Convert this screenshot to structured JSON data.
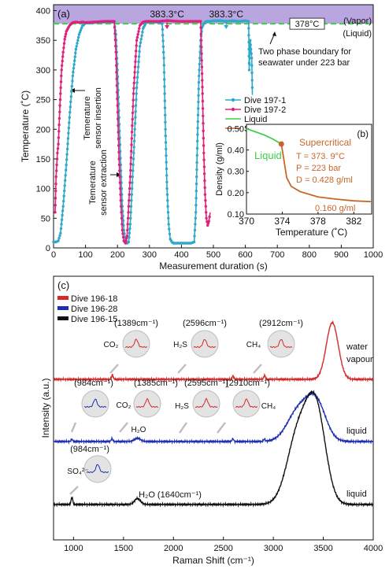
{
  "chart_data": [
    {
      "panel": "(a)",
      "type": "line",
      "xlabel": "Measurement duration (s)",
      "ylabel": "Temperature (˚C)",
      "xlim": [
        0,
        1000
      ],
      "ylim": [
        0,
        410
      ],
      "xticks": [
        0,
        100,
        200,
        300,
        400,
        500,
        600,
        700,
        800,
        900,
        1000
      ],
      "yticks": [
        0,
        50,
        100,
        150,
        200,
        250,
        300,
        350,
        400
      ],
      "vapor_region": {
        "label": "(Vapor)",
        "from": 378,
        "color": "#b9a6e0"
      },
      "liquid_label": "(Liquid)",
      "boundary": {
        "y": 378,
        "label": "378°C",
        "color": "#3ecf4a"
      },
      "boundary_note": [
        "Two phase boundary for",
        "seawater under 223 bar"
      ],
      "annotations": [
        {
          "text": "383.3°C",
          "x": 355,
          "color": "#e0217a"
        },
        {
          "text": "383.3°C",
          "x": 540,
          "color": "#2fa8c9"
        },
        {
          "text": "Temerature sensor insertion",
          "lines": [
            "Temerature",
            "sensor insertion"
          ]
        },
        {
          "text": "Temerature sensor extraction",
          "lines": [
            "Temerature",
            "sensor extraction"
          ]
        }
      ],
      "legend": [
        {
          "name": "Dive 197-1",
          "color": "#2fa8c9",
          "style": "line-marker"
        },
        {
          "name": "Dive 197-2",
          "color": "#e0217a",
          "style": "line-marker"
        },
        {
          "name": "Liquid",
          "color": "#3ecf4a",
          "style": "line"
        },
        {
          "name": "Supercritical",
          "color": "#c8662a",
          "style": "line"
        }
      ],
      "series": [
        {
          "name": "Dive 197-1",
          "color": "#2fa8c9",
          "x": [
            0,
            8,
            15,
            22,
            30,
            40,
            50,
            60,
            70,
            80,
            90,
            100,
            130,
            160,
            180,
            190,
            195,
            200,
            205,
            210,
            215,
            220,
            225,
            230,
            235,
            240,
            250,
            260,
            270,
            280,
            290,
            300,
            330,
            340,
            345,
            350,
            355,
            360,
            365,
            370,
            375,
            380,
            400,
            430,
            440,
            445,
            450,
            455,
            460,
            465,
            470,
            475,
            480,
            490,
            500,
            520,
            540,
            560,
            580,
            600,
            610,
            612,
            615,
            620,
            622
          ],
          "y": [
            10,
            10,
            12,
            25,
            70,
            140,
            220,
            290,
            335,
            360,
            374,
            379,
            380,
            381,
            381,
            380,
            360,
            300,
            220,
            140,
            70,
            30,
            12,
            8,
            10,
            40,
            150,
            270,
            340,
            370,
            380,
            381,
            381,
            378,
            320,
            200,
            100,
            40,
            15,
            10,
            8,
            8,
            8,
            8,
            10,
            60,
            180,
            290,
            350,
            372,
            378,
            381,
            382,
            382,
            383,
            383.3,
            382,
            383,
            382,
            383,
            382,
            300,
            350,
            320,
            258
          ]
        },
        {
          "name": "Dive 197-2",
          "color": "#e0217a",
          "x": [
            5,
            8,
            12,
            15,
            20,
            25,
            30,
            35,
            40,
            50,
            60,
            70,
            80,
            90,
            100,
            130,
            160,
            190,
            195,
            200,
            205,
            210,
            215,
            220,
            225,
            230,
            240,
            250,
            260,
            270,
            280,
            290,
            300,
            330,
            355,
            390,
            430,
            460,
            462,
            466,
            470,
            474,
            478,
            482,
            486,
            490
          ],
          "y": [
            60,
            120,
            160,
            175,
            240,
            300,
            330,
            352,
            365,
            375,
            380,
            381,
            380,
            381,
            380,
            381,
            382,
            382,
            330,
            240,
            150,
            80,
            30,
            12,
            8,
            20,
            120,
            260,
            350,
            375,
            381,
            382,
            382,
            382,
            383.3,
            382,
            382,
            382,
            350,
            260,
            160,
            90,
            50,
            38,
            45,
            60
          ]
        }
      ],
      "inset": {
        "panel": "(b)",
        "xlabel": "Temperature (˚C)",
        "ylabel": "Density (g/ml)",
        "xlim": [
          370,
          384
        ],
        "ylim": [
          0.1,
          0.52
        ],
        "xticks": [
          370,
          374,
          378,
          382
        ],
        "yticks": [
          0.1,
          0.2,
          0.3,
          0.4,
          0.5
        ],
        "ytick_labels": [
          "0.10",
          "0.20",
          "0.30",
          "0.40",
          "0.50"
        ],
        "liquid": {
          "label": "Liquid",
          "color": "#3ecf4a",
          "x": [
            370,
            371,
            372,
            373,
            373.9
          ],
          "y": [
            0.5,
            0.485,
            0.47,
            0.45,
            0.428
          ]
        },
        "supercritical": {
          "label": "Supercritical",
          "color": "#c8662a",
          "x": [
            373.9,
            374.2,
            374.5,
            375,
            376,
            378,
            380,
            382,
            384
          ],
          "y": [
            0.428,
            0.35,
            0.27,
            0.23,
            0.205,
            0.18,
            0.17,
            0.162,
            0.158
          ]
        },
        "critical_point": {
          "x": 373.9,
          "y": 0.428,
          "color": "#c8662a"
        },
        "info": [
          "T = 373. 9°C",
          "P = 223 bar",
          "D = 0.428 g/ml"
        ],
        "end_label": "0.160 g/ml"
      }
    },
    {
      "panel": "(c)",
      "type": "line",
      "xlabel": "Raman Shift (cm⁻¹)",
      "ylabel": "Intensity (a.u.)",
      "xlim": [
        800,
        4000
      ],
      "xticks": [
        1000,
        1500,
        2000,
        2500,
        3000,
        3500,
        4000
      ],
      "legend": [
        {
          "name": "Dive 196-18",
          "color": "#d42a2a"
        },
        {
          "name": "Dive 196-28",
          "color": "#1e2fb0"
        },
        {
          "name": "Dive 196-15",
          "color": "#111111"
        }
      ],
      "series": [
        {
          "name": "Dive 196-18",
          "color": "#d42a2a",
          "baseline": 0,
          "label": [
            "water",
            "vapour"
          ],
          "peaks": [
            {
              "center": 1389,
              "height": 0.08,
              "width": 8
            },
            {
              "center": 2596,
              "height": 0.06,
              "width": 8
            },
            {
              "center": 2912,
              "height": 0.07,
              "width": 8
            },
            {
              "center": 3590,
              "height": 1,
              "width": 60
            }
          ]
        },
        {
          "name": "Dive 196-28",
          "color": "#1e2fb0",
          "baseline": 0,
          "label": [
            "liquid"
          ],
          "peaks": [
            {
              "center": 984,
              "height": 0.04,
              "width": 8
            },
            {
              "center": 1385,
              "height": 0.05,
              "width": 8
            },
            {
              "center": 1640,
              "height": 0.06,
              "width": 30
            },
            {
              "center": 2595,
              "height": 0.05,
              "width": 8
            },
            {
              "center": 2910,
              "height": 0.04,
              "width": 8
            },
            {
              "center": 3250,
              "height": 0.55,
              "width": 110
            },
            {
              "center": 3430,
              "height": 0.68,
              "width": 95
            }
          ]
        },
        {
          "name": "Dive 196-15",
          "color": "#111111",
          "baseline": 0,
          "label": [
            "liquid"
          ],
          "peaks": [
            {
              "center": 984,
              "height": 0.06,
              "width": 8
            },
            {
              "center": 1640,
              "height": 0.05,
              "width": 30
            },
            {
              "center": 3250,
              "height": 0.6,
              "width": 110
            },
            {
              "center": 3430,
              "height": 0.75,
              "width": 95
            }
          ]
        }
      ],
      "peak_callouts": [
        {
          "wavenumber": "(1389cm⁻¹)",
          "species": "CO₂",
          "color": "#d42a2a"
        },
        {
          "wavenumber": "(2596cm⁻¹)",
          "species": "H₂S",
          "color": "#d42a2a"
        },
        {
          "wavenumber": "(2912cm⁻¹)",
          "species": "CH₄",
          "color": "#d42a2a"
        },
        {
          "wavenumber": "(984cm⁻¹)",
          "species": "",
          "color": "#1e2fb0"
        },
        {
          "wavenumber": "(1385cm⁻¹)",
          "species": "CO₂",
          "color": "#d42a2a"
        },
        {
          "wavenumber": "(2595cm⁻¹)",
          "species": "H₂S",
          "color": "#d42a2a"
        },
        {
          "wavenumber": "(2910cm⁻¹)",
          "species": "CH₄",
          "color": "#d42a2a"
        },
        {
          "wavenumber": "(984cm⁻¹)",
          "species": "SO₄²⁻",
          "color": "#1e2fb0"
        }
      ],
      "peak_labels": [
        {
          "text": "H₂O",
          "at": 1640
        },
        {
          "text": "H₂O (1640cm⁻¹)",
          "at": 1640
        }
      ]
    }
  ]
}
